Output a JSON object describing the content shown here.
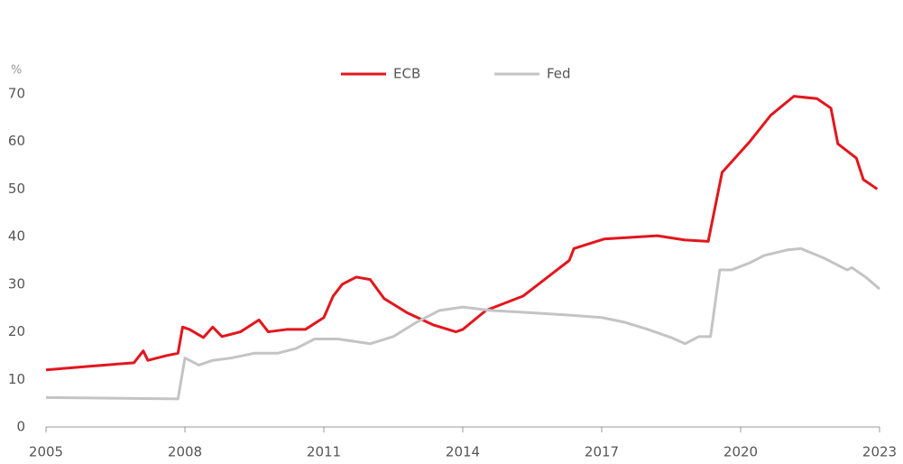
{
  "chart_data": {
    "type": "line",
    "y_label": "%",
    "xlim": [
      2005,
      2023
    ],
    "xticks": [
      2005,
      2008,
      2011,
      2014,
      2017,
      2020,
      2023
    ],
    "ylim": [
      0,
      70
    ],
    "yticks": [
      0,
      10,
      20,
      30,
      40,
      50,
      60,
      70
    ],
    "grid": false,
    "legend": "top",
    "series": [
      {
        "name": "ECB",
        "color": "#e3161d",
        "x": [
          2005,
          2006,
          2006.9,
          2007.1,
          2007.2,
          2007.6,
          2007.85,
          2007.95,
          2008.1,
          2008.4,
          2008.6,
          2008.8,
          2009.2,
          2009.6,
          2009.8,
          2010.2,
          2010.6,
          2011.0,
          2011.2,
          2011.4,
          2011.7,
          2012.0,
          2012.3,
          2012.8,
          2013.35,
          2013.85,
          2014.0,
          2014.5,
          2015.3,
          2015.9,
          2016.3,
          2016.4,
          2017.05,
          2018.2,
          2018.8,
          2019.3,
          2019.6,
          2020.2,
          2020.65,
          2021.15,
          2021.65,
          2021.95,
          2022.1,
          2022.5,
          2022.65,
          2022.95
        ],
        "values": [
          12,
          12.8,
          13.5,
          16,
          14,
          15,
          15.5,
          21,
          20.5,
          18.8,
          21,
          19,
          20,
          22.5,
          20,
          20.5,
          20.5,
          23,
          27.5,
          30,
          31.5,
          31,
          27,
          24,
          21.5,
          20,
          20.5,
          24.5,
          27.5,
          32,
          35,
          37.5,
          39.5,
          40.2,
          39.3,
          39,
          53.5,
          60,
          65.5,
          69.5,
          69,
          67,
          59.5,
          56.5,
          52,
          50
        ]
      },
      {
        "name": "Fed",
        "color": "#c4c4c4",
        "x": [
          2005,
          2007.85,
          2008.0,
          2008.3,
          2008.6,
          2009.0,
          2009.5,
          2010.0,
          2010.4,
          2010.8,
          2011.3,
          2012.0,
          2012.5,
          2013.0,
          2013.5,
          2014.0,
          2014.6,
          2015.5,
          2016.3,
          2017.0,
          2017.5,
          2018.0,
          2018.5,
          2018.8,
          2019.1,
          2019.35,
          2019.55,
          2019.8,
          2020.2,
          2020.5,
          2021.0,
          2021.3,
          2021.8,
          2022.3,
          2022.4,
          2022.7,
          2023.0
        ],
        "values": [
          6.2,
          5.9,
          14.5,
          13,
          14,
          14.5,
          15.5,
          15.5,
          16.5,
          18.5,
          18.5,
          17.5,
          19,
          22,
          24.5,
          25.2,
          24.5,
          24,
          23.5,
          23,
          22,
          20.5,
          18.8,
          17.5,
          19,
          19,
          33,
          33,
          34.5,
          36,
          37.2,
          37.5,
          35.5,
          33,
          33.5,
          31.5,
          29
        ]
      }
    ]
  }
}
